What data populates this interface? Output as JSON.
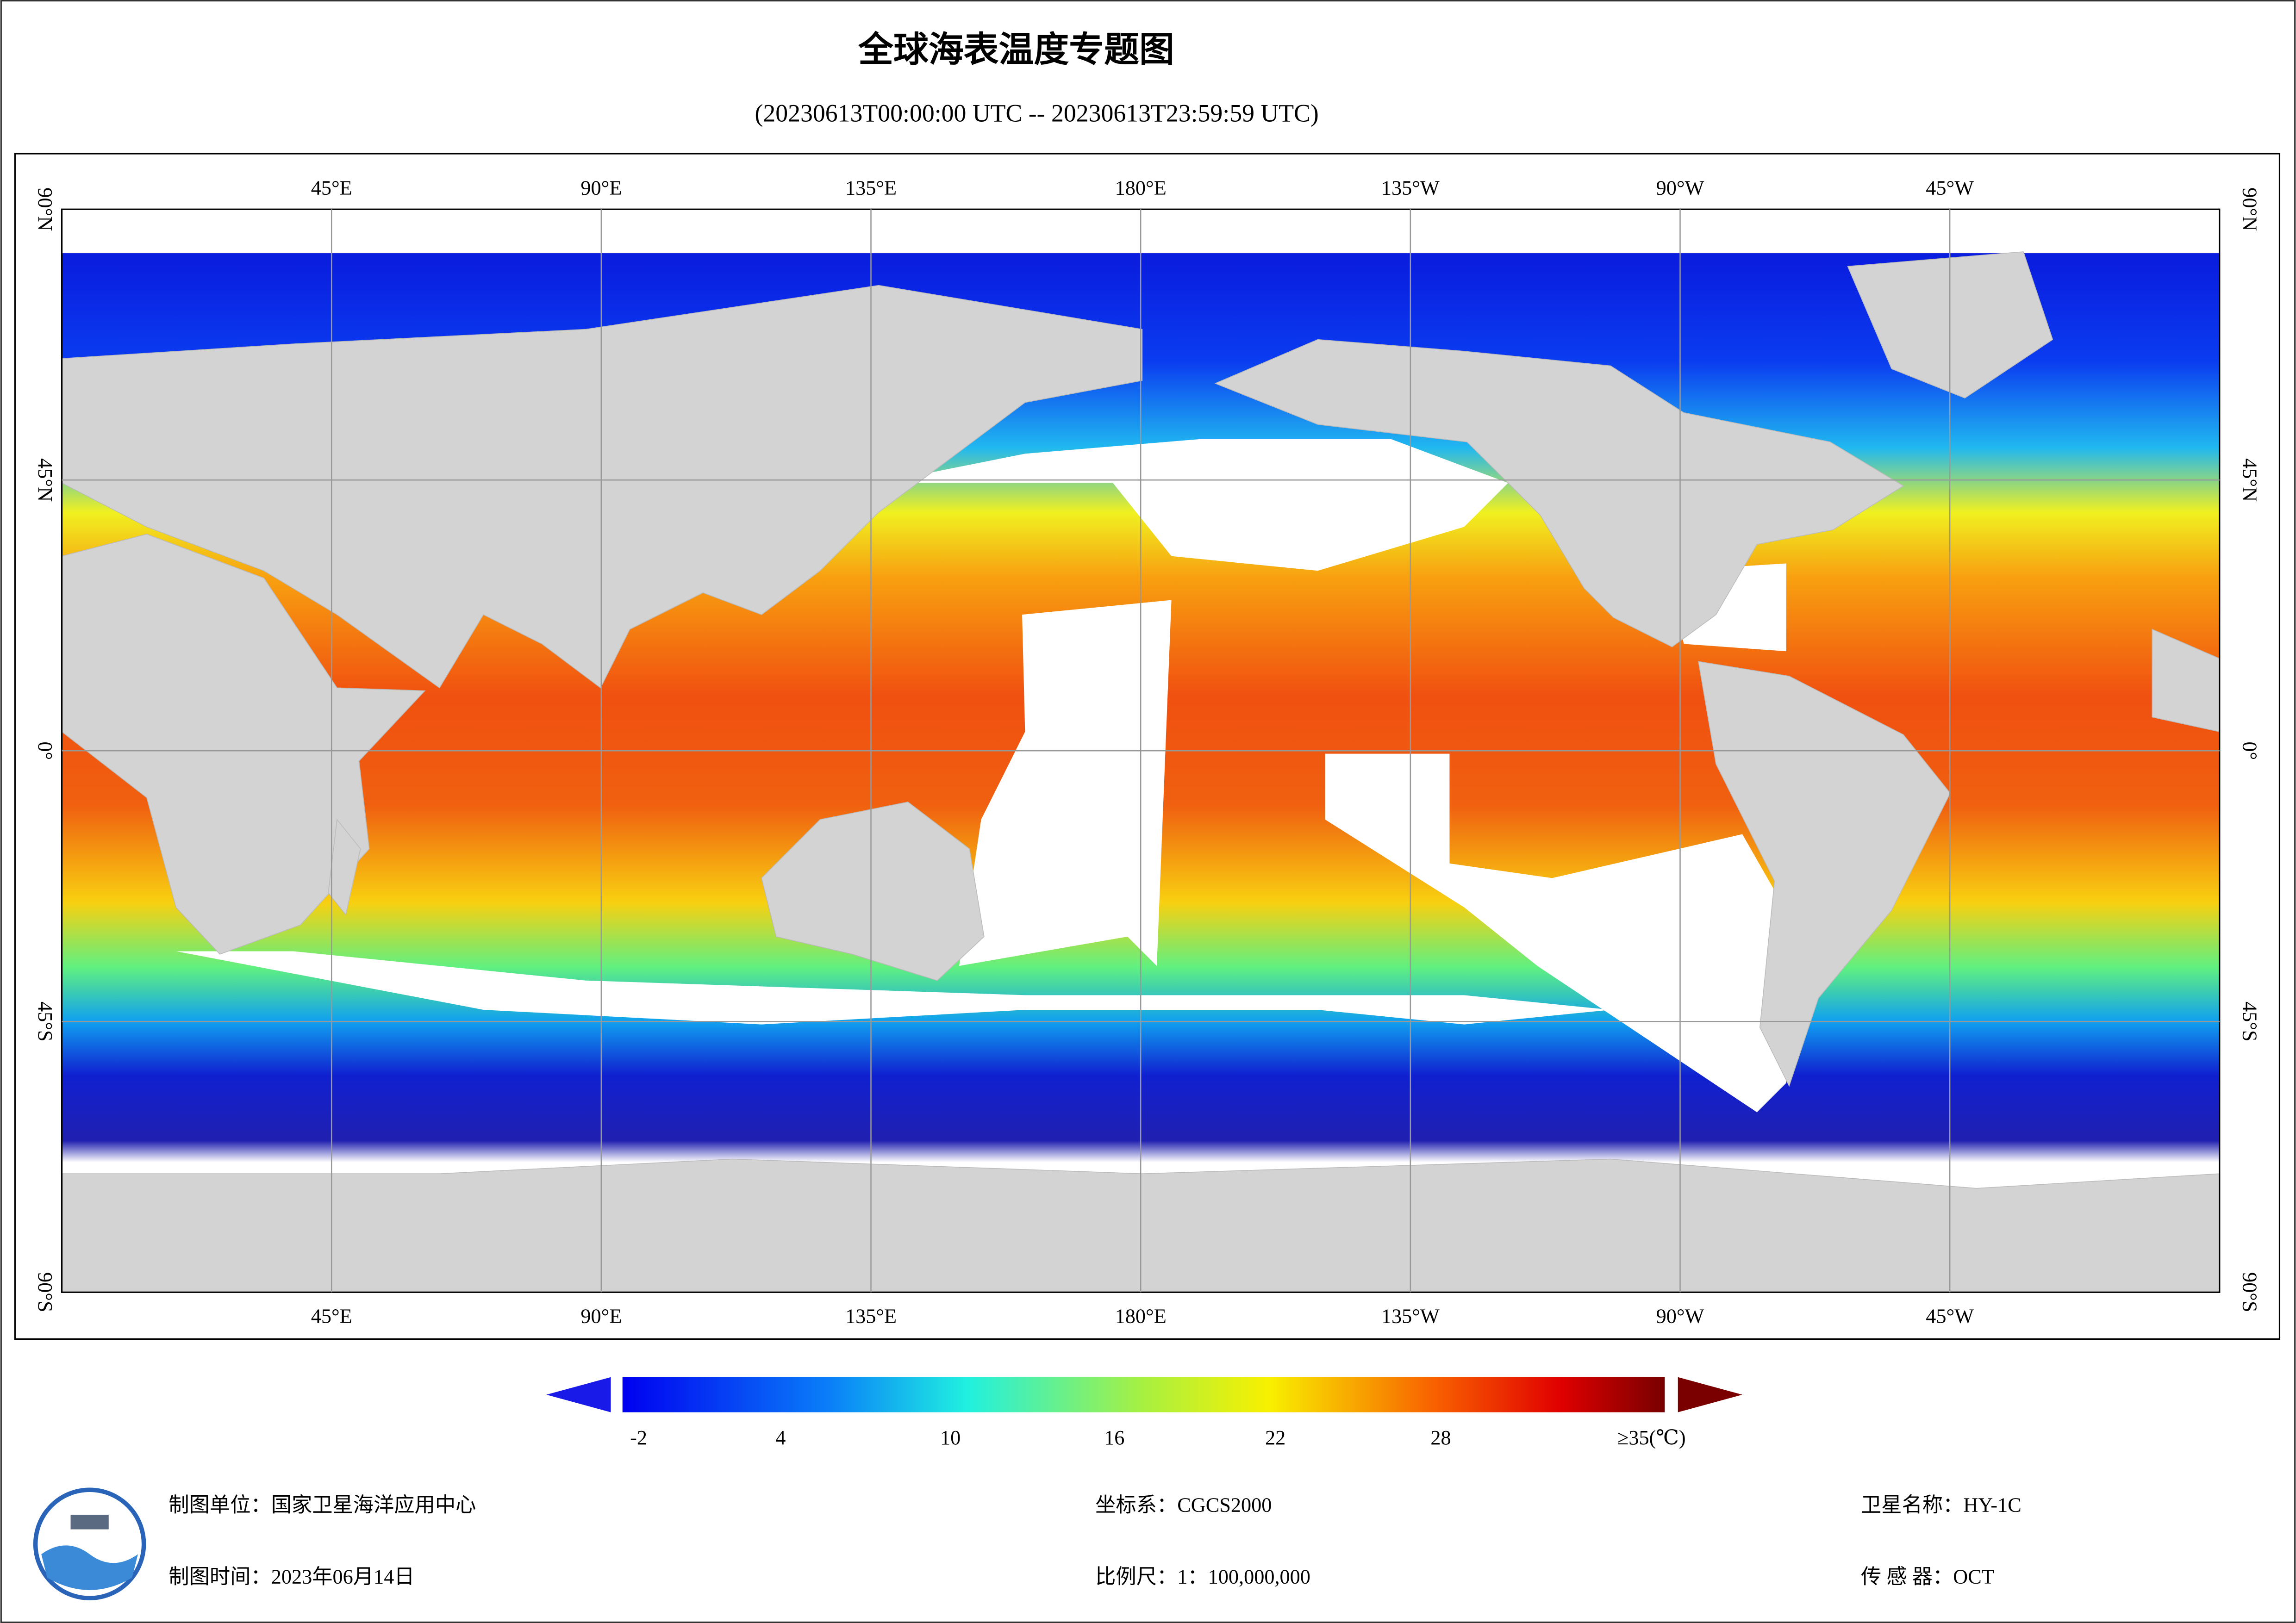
{
  "header": {
    "title": "全球海表温度专题图",
    "subtitle": "(20230613T00:00:00 UTC -- 20230613T23:59:59 UTC)"
  },
  "map": {
    "lon_labels": [
      "45°E",
      "90°E",
      "135°E",
      "180°E",
      "135°W",
      "90°W",
      "45°W"
    ],
    "lat_labels": [
      "90°N",
      "45°N",
      "0°",
      "45°S",
      "90°S"
    ]
  },
  "colorbar": {
    "ticks": [
      "-2",
      "4",
      "10",
      "16",
      "22",
      "28",
      "≥35(℃)"
    ]
  },
  "footer": {
    "unit": "制图单位：国家卫星海洋应用中心",
    "date": "制图时间：2023年06月14日",
    "crs": "坐标系：CGCS2000",
    "scale": "比例尺：1：100,000,000",
    "satellite": "卫星名称：HY-1C",
    "sensor": "传 感 器：OCT"
  }
}
